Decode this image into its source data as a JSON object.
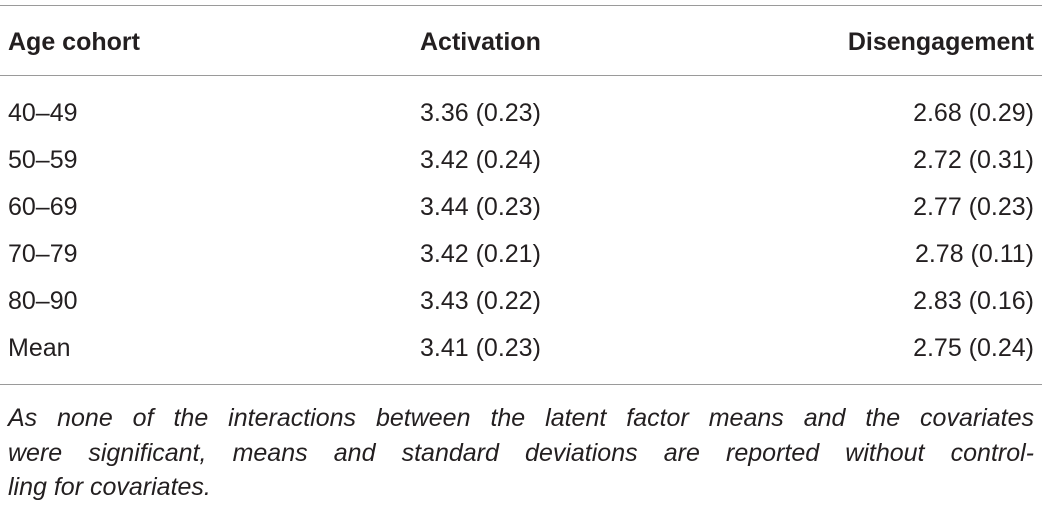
{
  "table": {
    "columns": [
      "Age cohort",
      "Activation",
      "Disengagement"
    ],
    "rows": [
      [
        "40–49",
        "3.36 (0.23)",
        "2.68 (0.29)"
      ],
      [
        "50–59",
        "3.42 (0.24)",
        "2.72 (0.31)"
      ],
      [
        "60–69",
        "3.44 (0.23)",
        "2.77 (0.23)"
      ],
      [
        "70–79",
        "3.42 (0.21)",
        "2.78 (0.11)"
      ],
      [
        "80–90",
        "3.43 (0.22)",
        "2.83 (0.16)"
      ],
      [
        "Mean",
        "3.41 (0.23)",
        "2.75 (0.24)"
      ]
    ],
    "note": [
      "As none of the interactions between the latent factor means and the covariates",
      "were significant, means and standard deviations are reported without control-",
      "ling for covariates."
    ]
  }
}
